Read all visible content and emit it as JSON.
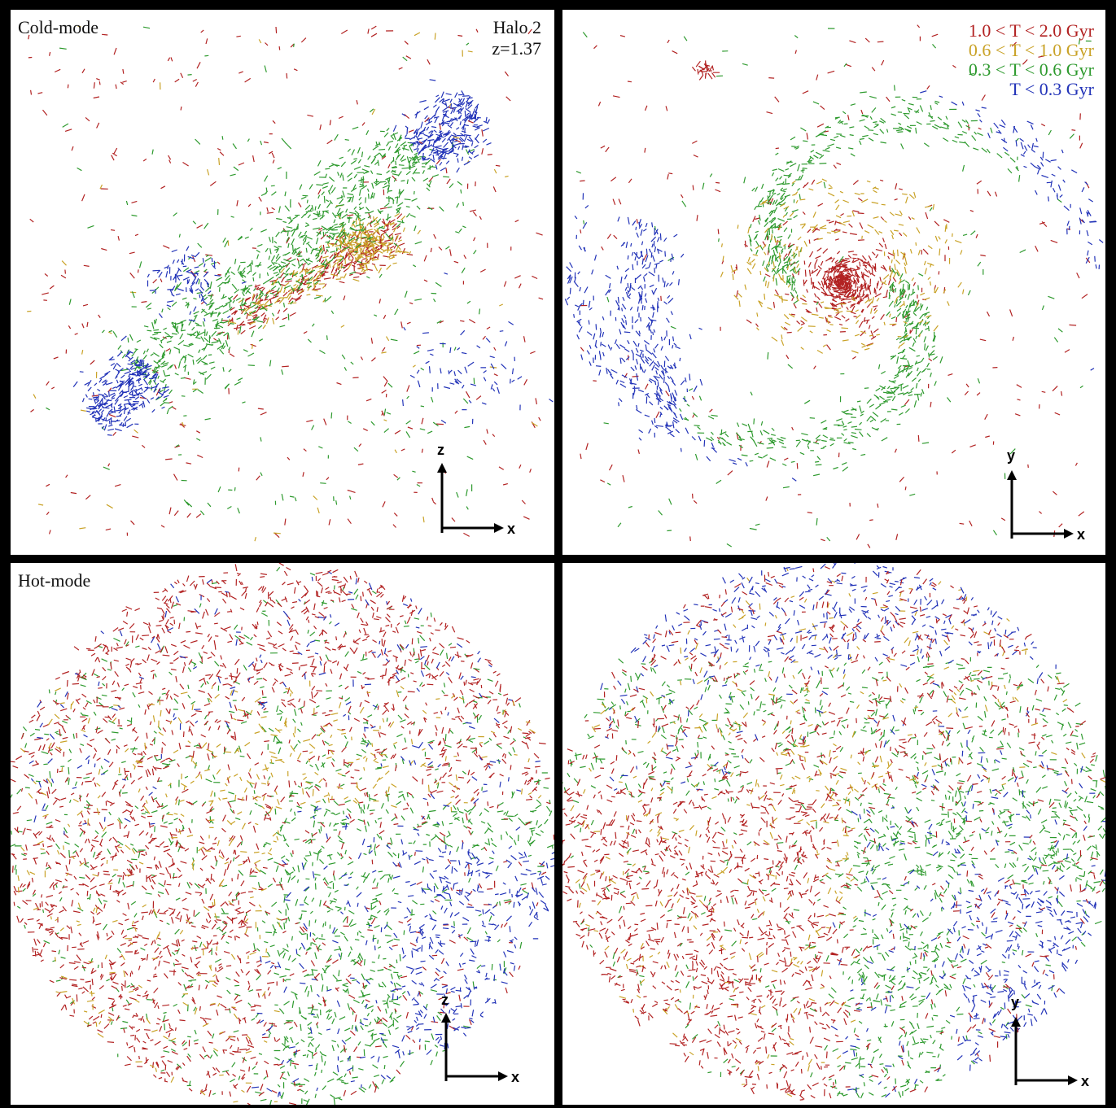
{
  "panels": {
    "top_left": {
      "mode_label": "Cold-mode",
      "halo": "Halo 2",
      "redshift": "z=1.37",
      "axis_vertical": "z",
      "axis_horizontal": "x"
    },
    "top_right": {
      "axis_vertical": "y",
      "axis_horizontal": "x"
    },
    "bottom_left": {
      "mode_label": "Hot-mode",
      "axis_vertical": "z",
      "axis_horizontal": "x"
    },
    "bottom_right": {
      "axis_vertical": "y",
      "axis_horizontal": "x"
    }
  },
  "legend": [
    {
      "label": "1.0 < T < 2.0 Gyr",
      "color": "#b22222"
    },
    {
      "label": "0.6 < T < 1.0 Gyr",
      "color": "#c9a227"
    },
    {
      "label": "0.3 < T < 0.6 Gyr",
      "color": "#2e9a2e"
    },
    {
      "label": "T < 0.3 Gyr",
      "color": "#2233b8"
    }
  ]
}
